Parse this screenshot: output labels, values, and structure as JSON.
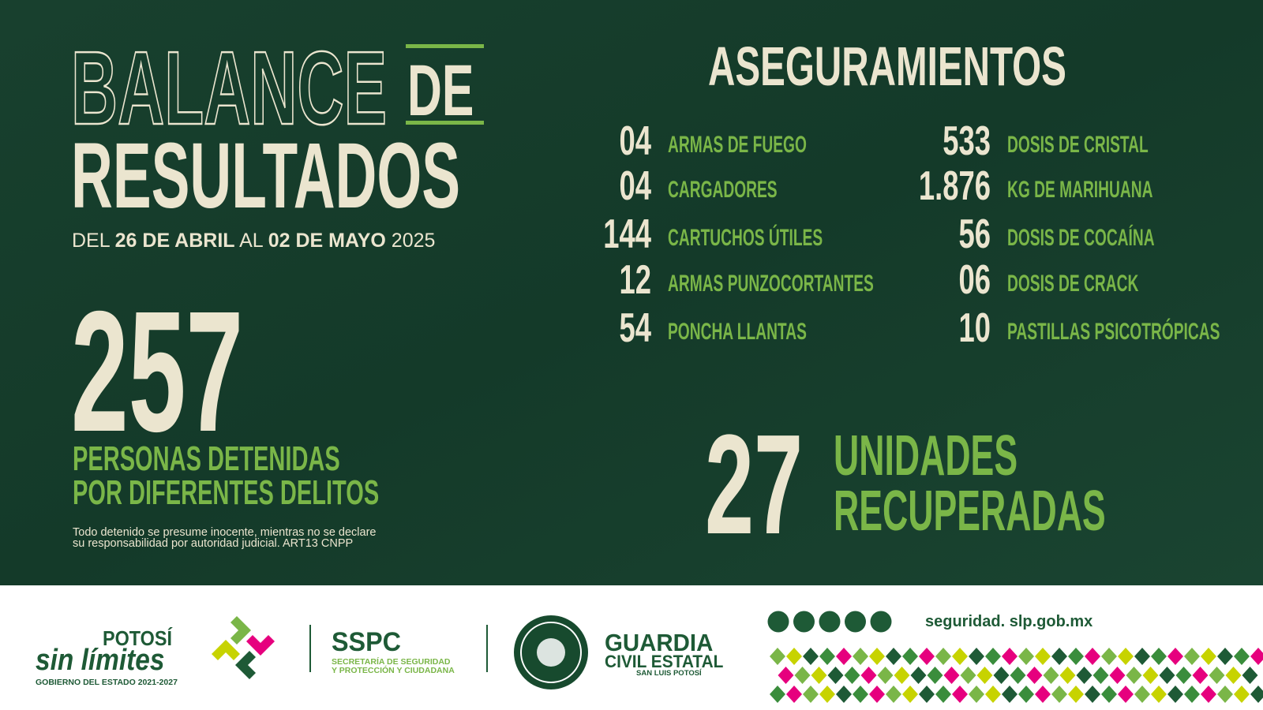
{
  "header": {
    "title_line1": "BALANCE",
    "title_de": "DE",
    "title_line2": "RESULTADOS",
    "date": [
      "DEL ",
      "26 DE ABRIL",
      " AL ",
      "02 DE MAYO",
      " 2025"
    ]
  },
  "detenidos": {
    "number": "257",
    "label": [
      "PERSONAS DETENIDAS",
      "POR DIFERENTES DELITOS"
    ],
    "note": [
      "Todo detenido se presume inocente, mientras no se declare",
      "su responsabilidad por autoridad judicial. ART13 CNPP"
    ]
  },
  "aseguramientos": {
    "title": "ASEGURAMIENTOS",
    "left": [
      [
        "04",
        "ARMAS DE FUEGO"
      ],
      [
        "04",
        "CARGADORES"
      ],
      [
        "144",
        "CARTUCHOS ÚTILES"
      ],
      [
        "12",
        "ARMAS PUNZOCORTANTES"
      ],
      [
        "54",
        "PONCHA LLANTAS"
      ]
    ],
    "right": [
      [
        "533",
        "DOSIS DE CRISTAL"
      ],
      [
        "1.876",
        "KG DE MARIHUANA"
      ],
      [
        "56",
        "DOSIS DE COCAÍNA"
      ],
      [
        "06",
        "DOSIS DE CRACK"
      ],
      [
        "10",
        "PASTILLAS PSICOTRÓPICAS"
      ]
    ]
  },
  "unidades": {
    "number": "27",
    "label": [
      "UNIDADES",
      "RECUPERADAS"
    ]
  },
  "footer": {
    "potosi": "POTOSÍ",
    "sin_limites": "sin límites",
    "gobierno": "GOBIERNO DEL ESTADO 2021-2027",
    "sspc": "SSPC",
    "sspc_name": [
      "SECRETARÍA DE SEGURIDAD",
      "Y PROTECCIÓN Y CIUDADANA"
    ],
    "guardia": [
      "GUARDIA",
      "CIVIL ESTATAL"
    ],
    "guardia_sub": "SAN LUIS POTOSÍ",
    "website": "seguridad. slp.gob.mx"
  }
}
